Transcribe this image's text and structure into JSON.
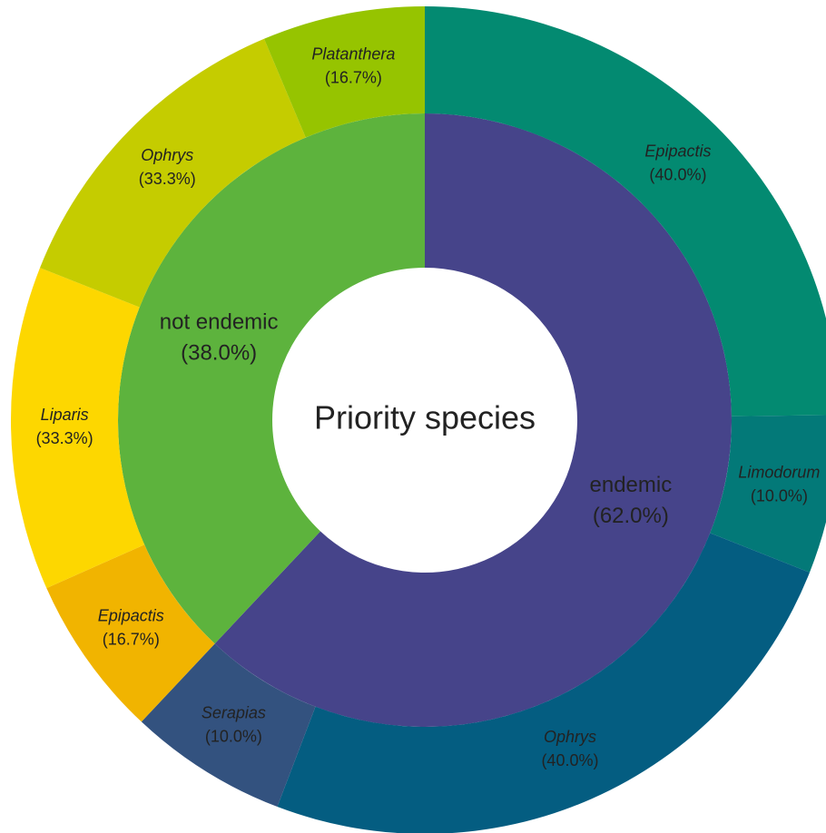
{
  "chart_data": {
    "type": "sunburst",
    "center_label": "Priority species",
    "categories": [
      "endemic",
      "not endemic"
    ],
    "values": [
      62,
      38
    ],
    "value_labels": [
      "(62.0%)",
      "(38.0%)"
    ],
    "colors": [
      "#46448a",
      "#5db33d"
    ],
    "children": [
      {
        "categories": [
          "Epipactis",
          "Limodorum",
          "Ophrys",
          "Serapias"
        ],
        "values": [
          40,
          10,
          40,
          10
        ],
        "value_labels": [
          "(40.0%)",
          "(10.0%)",
          "(40.0%)",
          "(10.0%)"
        ],
        "colors": [
          "#038a71",
          "#037978",
          "#045d81",
          "#33527f"
        ]
      },
      {
        "categories": [
          "Epipactis",
          "Liparis",
          "Ophrys",
          "Platanthera"
        ],
        "values": [
          16.7,
          33.3,
          33.3,
          16.7
        ],
        "value_labels": [
          "(16.7%)",
          "(33.3%)",
          "(33.3%)",
          "(16.7%)"
        ],
        "colors": [
          "#f1b400",
          "#fdd700",
          "#c5cc00",
          "#96c400"
        ]
      }
    ]
  }
}
